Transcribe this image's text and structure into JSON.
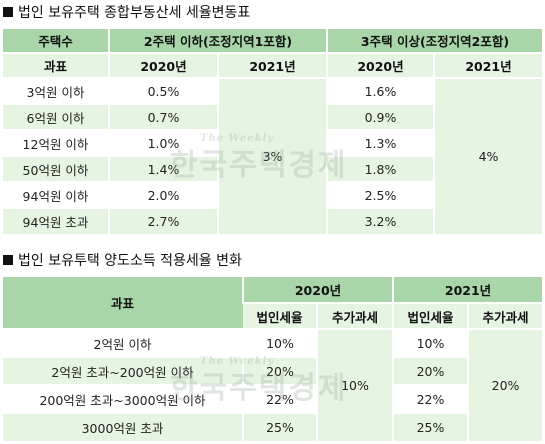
{
  "section1": {
    "title": "법인 보유주택 종합부동산세 세율변동표",
    "header": {
      "houses_label": "주택수",
      "group1": "2주택 이하(조정지역1포함)",
      "group2": "3주택 이상(조정지역2포함)",
      "tax_base_label": "과표",
      "year_2020": "2020년",
      "year_2021": "2021년"
    },
    "rows": [
      {
        "bracket": "3억원 이하",
        "rate_a_2020": "0.5%",
        "rate_b_2020": "1.6%"
      },
      {
        "bracket": "6억원 이하",
        "rate_a_2020": "0.7%",
        "rate_b_2020": "0.9%"
      },
      {
        "bracket": "12억원 이하",
        "rate_a_2020": "1.0%",
        "rate_b_2020": "1.3%"
      },
      {
        "bracket": "50억원 이하",
        "rate_a_2020": "1.4%",
        "rate_b_2020": "1.8%"
      },
      {
        "bracket": "94억원 이하",
        "rate_a_2020": "2.0%",
        "rate_b_2020": "2.5%"
      },
      {
        "bracket": "94억원 초과",
        "rate_a_2020": "2.7%",
        "rate_b_2020": "3.2%"
      }
    ],
    "rate_a_2021": "3%",
    "rate_b_2021": "4%"
  },
  "section2": {
    "title": "법인 보유투택 양도소득 적용세율 변화",
    "header": {
      "tax_base_label": "과표",
      "year_2020": "2020년",
      "year_2021": "2021년",
      "corp_tax_label": "법인세율",
      "extra_tax_label": "추가과세"
    },
    "rows": [
      {
        "bracket": "2억원 이하",
        "corp_2020": "10%",
        "corp_2021": "10%"
      },
      {
        "bracket": "2억원 초과~200억원 이하",
        "corp_2020": "20%",
        "corp_2021": "20%"
      },
      {
        "bracket": "200억원 초과~3000억원 이하",
        "corp_2020": "22%",
        "corp_2021": "22%"
      },
      {
        "bracket": "3000억원 초과",
        "corp_2020": "25%",
        "corp_2021": "25%"
      }
    ],
    "extra_2020": "10%",
    "extra_2021": "20%"
  },
  "watermark": {
    "small": "The Weekly",
    "main": "한국주택경제"
  }
}
